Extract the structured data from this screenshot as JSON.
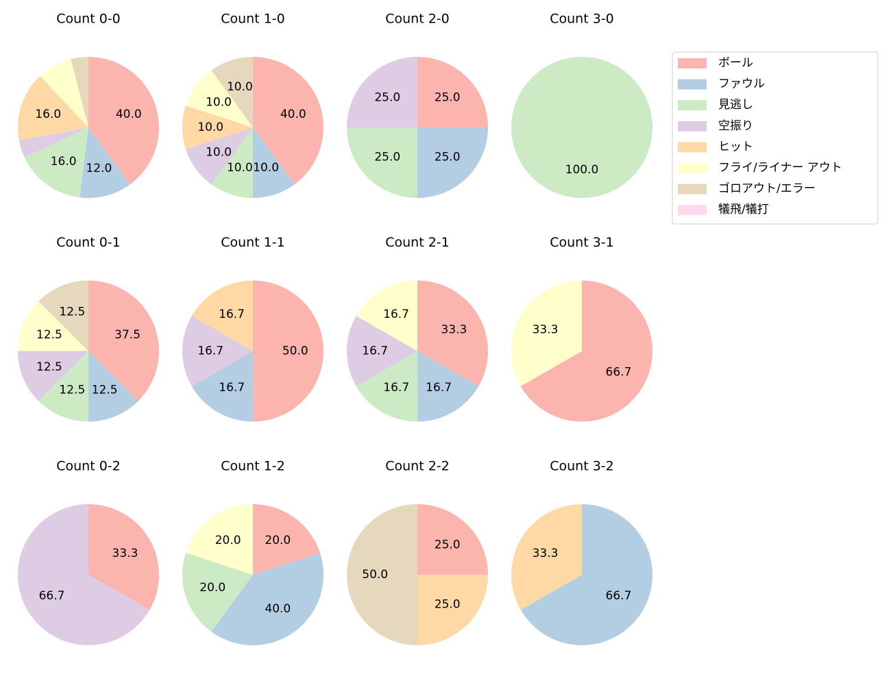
{
  "legend": {
    "labels": [
      "ボール",
      "ファウル",
      "見逃し",
      "空振り",
      "ヒット",
      "フライ/ライナー アウト",
      "ゴロアウト/エラー",
      "犠飛/犠打"
    ],
    "colors": [
      "#fbb4ae",
      "#b3cde3",
      "#ccebc5",
      "#decbe4",
      "#fed9a6",
      "#ffffcc",
      "#e5d8bd",
      "#fddaec"
    ],
    "position": "upper right"
  },
  "chart_data": [
    {
      "type": "pie",
      "title": "Count 0-0",
      "values": [
        40,
        12,
        16,
        4,
        16,
        8,
        4,
        0
      ],
      "value_labels": [
        "40.0",
        "12.0",
        "16.0",
        null,
        "16.0",
        null,
        null,
        null
      ]
    },
    {
      "type": "pie",
      "title": "Count 1-0",
      "values": [
        40,
        10,
        10,
        10,
        10,
        10,
        10,
        0
      ],
      "value_labels": [
        "40.0",
        "10.0",
        "10.0",
        "10.0",
        "10.0",
        "10.0",
        "10.0",
        null
      ]
    },
    {
      "type": "pie",
      "title": "Count 2-0",
      "values": [
        25,
        25,
        25,
        25,
        0,
        0,
        0,
        0
      ],
      "value_labels": [
        "25.0",
        "25.0",
        "25.0",
        "25.0",
        null,
        null,
        null,
        null
      ]
    },
    {
      "type": "pie",
      "title": "Count 3-0",
      "values": [
        0,
        0,
        100,
        0,
        0,
        0,
        0,
        0
      ],
      "value_labels": [
        null,
        null,
        "100.0",
        null,
        null,
        null,
        null,
        null
      ]
    },
    {
      "type": "pie",
      "title": "Count 0-1",
      "values": [
        37.5,
        12.5,
        12.5,
        12.5,
        0,
        12.5,
        12.5,
        0
      ],
      "value_labels": [
        "37.5",
        "12.5",
        "12.5",
        "12.5",
        null,
        "12.5",
        "12.5",
        null
      ]
    },
    {
      "type": "pie",
      "title": "Count 1-1",
      "values": [
        50,
        16.7,
        0,
        16.7,
        16.7,
        0,
        0,
        0
      ],
      "value_labels": [
        "50.0",
        "16.7",
        null,
        "16.7",
        "16.7",
        null,
        null,
        null
      ]
    },
    {
      "type": "pie",
      "title": "Count 2-1",
      "values": [
        33.3,
        16.7,
        16.7,
        16.7,
        0,
        16.7,
        0,
        0
      ],
      "value_labels": [
        "33.3",
        "16.7",
        "16.7",
        "16.7",
        null,
        "16.7",
        null,
        null
      ]
    },
    {
      "type": "pie",
      "title": "Count 3-1",
      "values": [
        66.7,
        0,
        0,
        0,
        0,
        33.3,
        0,
        0
      ],
      "value_labels": [
        "66.7",
        null,
        null,
        null,
        null,
        "33.3",
        null,
        null
      ]
    },
    {
      "type": "pie",
      "title": "Count 0-2",
      "values": [
        33.3,
        0,
        0,
        66.7,
        0,
        0,
        0,
        0
      ],
      "value_labels": [
        "33.3",
        null,
        null,
        "66.7",
        null,
        null,
        null,
        null
      ]
    },
    {
      "type": "pie",
      "title": "Count 1-2",
      "values": [
        20,
        40,
        20,
        0,
        0,
        20,
        0,
        0
      ],
      "value_labels": [
        "20.0",
        "40.0",
        "20.0",
        null,
        null,
        "20.0",
        null,
        null
      ]
    },
    {
      "type": "pie",
      "title": "Count 2-2",
      "values": [
        25,
        0,
        0,
        0,
        25,
        0,
        50,
        0
      ],
      "value_labels": [
        "25.0",
        null,
        null,
        null,
        "25.0",
        null,
        "50.0",
        null
      ]
    },
    {
      "type": "pie",
      "title": "Count 3-2",
      "values": [
        0,
        66.7,
        0,
        0,
        33.3,
        0,
        0,
        0
      ],
      "value_labels": [
        null,
        "66.7",
        null,
        null,
        "33.3",
        null,
        null,
        null
      ]
    }
  ]
}
